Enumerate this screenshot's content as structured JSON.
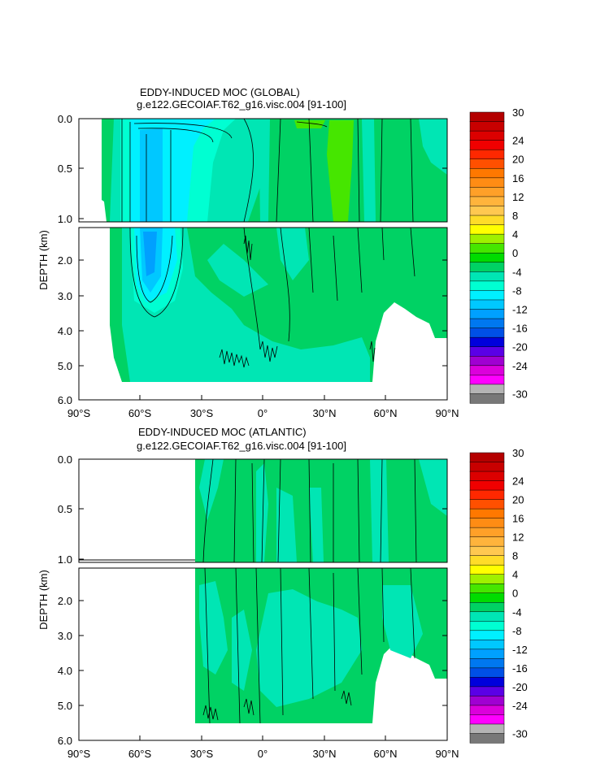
{
  "chart_data": [
    {
      "type": "heatmap",
      "title": "EDDY-INDUCED MOC (GLOBAL)",
      "subtitle": "g.e122.GECOIAF.T62_g16.visc.004 [91-100]",
      "ylabel": "DEPTH (km)",
      "xlim": [
        -90,
        90
      ],
      "ylim": [
        0,
        6
      ],
      "x_ticks": [
        {
          "value": -90,
          "label": "90°S"
        },
        {
          "value": -60,
          "label": "60°S"
        },
        {
          "value": -30,
          "label": "30°S"
        },
        {
          "value": 0,
          "label": "0°"
        },
        {
          "value": 30,
          "label": "30°N"
        },
        {
          "value": 60,
          "label": "60°N"
        },
        {
          "value": 90,
          "label": "90°N"
        }
      ],
      "y_ticks_upper": [
        {
          "value": 0,
          "label": "0.0"
        },
        {
          "value": 0.5,
          "label": "0.5"
        },
        {
          "value": 1.0,
          "label": "1.0"
        }
      ],
      "y_ticks_lower": [
        {
          "value": 2,
          "label": "2.0"
        },
        {
          "value": 3,
          "label": "3.0"
        },
        {
          "value": 4,
          "label": "4.0"
        },
        {
          "value": 5,
          "label": "5.0"
        },
        {
          "value": 6,
          "label": "6.0"
        }
      ],
      "upper_panel_depth_range_km": [
        0,
        1.0
      ],
      "lower_panel_depth_range_km": [
        1.0,
        6.0
      ],
      "data_extent_latitude": [
        -77,
        90
      ],
      "features": [
        {
          "name": "southern_ocean_cell",
          "lat_range": [
            -65,
            -35
          ],
          "depth_range_km": [
            0,
            3.4
          ],
          "min_value": -12
        },
        {
          "name": "northern_positive_cell",
          "lat_range": [
            30,
            45
          ],
          "depth_range_km": [
            0,
            0.6
          ],
          "max_value": 4
        }
      ]
    },
    {
      "type": "heatmap",
      "title": "EDDY-INDUCED MOC (ATLANTIC)",
      "subtitle": "g.e122.GECOIAF.T62_g16.visc.004 [91-100]",
      "ylabel": "DEPTH (km)",
      "xlim": [
        -90,
        90
      ],
      "ylim": [
        0,
        6
      ],
      "x_ticks": [
        {
          "value": -90,
          "label": "90°S"
        },
        {
          "value": -60,
          "label": "60°S"
        },
        {
          "value": -30,
          "label": "30°S"
        },
        {
          "value": 0,
          "label": "0°"
        },
        {
          "value": 30,
          "label": "30°N"
        },
        {
          "value": 60,
          "label": "60°N"
        },
        {
          "value": 90,
          "label": "90°N"
        }
      ],
      "y_ticks_upper": [
        {
          "value": 0,
          "label": "0.0"
        },
        {
          "value": 0.5,
          "label": "0.5"
        },
        {
          "value": 1.0,
          "label": "1.0"
        }
      ],
      "y_ticks_lower": [
        {
          "value": 2,
          "label": "2.0"
        },
        {
          "value": 3,
          "label": "3.0"
        },
        {
          "value": 4,
          "label": "4.0"
        },
        {
          "value": 5,
          "label": "5.0"
        },
        {
          "value": 6,
          "label": "6.0"
        }
      ],
      "upper_panel_depth_range_km": [
        0,
        1.0
      ],
      "lower_panel_depth_range_km": [
        1.0,
        6.0
      ],
      "data_extent_latitude": [
        -34,
        90
      ]
    }
  ],
  "colorbar": {
    "labels": [
      "30",
      "24",
      "20",
      "16",
      "12",
      "8",
      "4",
      "0",
      "-4",
      "-8",
      "-12",
      "-16",
      "-20",
      "-24",
      "-30"
    ],
    "levels": [
      30,
      28,
      26,
      24,
      22,
      20,
      18,
      16,
      14,
      12,
      10,
      8,
      6,
      4,
      2,
      0,
      -2,
      -4,
      -6,
      -8,
      -10,
      -12,
      -14,
      -16,
      -18,
      -20,
      -22,
      -24,
      -26,
      -28,
      -30
    ],
    "colors": [
      "#b40000",
      "#c80000",
      "#dc0000",
      "#f00000",
      "#ff2800",
      "#ff5000",
      "#ff7800",
      "#ff8c14",
      "#ffa028",
      "#ffb43c",
      "#ffc850",
      "#ffdc28",
      "#ffff00",
      "#a0f000",
      "#46e600",
      "#00dc00",
      "#00d264",
      "#00e6b4",
      "#00ffd2",
      "#00f0ff",
      "#00c8ff",
      "#00a0ff",
      "#0078f0",
      "#0050e6",
      "#0000dc",
      "#5a00e6",
      "#a000d2",
      "#dc00dc",
      "#ff00ff",
      "#b4b4b4",
      "#787878"
    ]
  }
}
